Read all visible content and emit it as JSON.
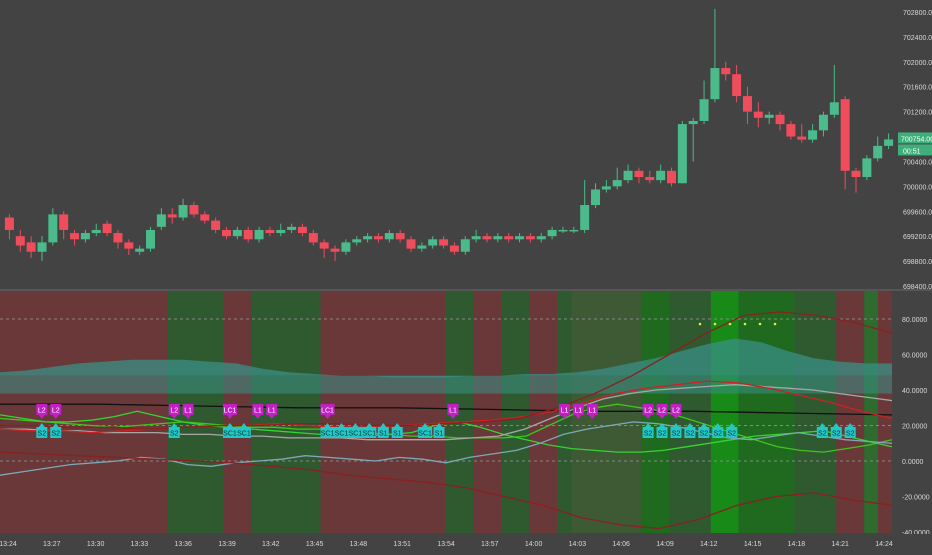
{
  "chart_data": [
    {
      "type": "candlestick",
      "title": "",
      "y_ticks": [
        "702800.00",
        "702400.00",
        "702000.00",
        "701600.00",
        "701200.00",
        "700800.00",
        "700400.00",
        "700000.00",
        "699600.00",
        "699200.00",
        "698800.00",
        "698400.00"
      ],
      "y_range": [
        698400,
        702900
      ],
      "last_price_label": "700754.00",
      "countdown_label": "00:51",
      "colors": {
        "up": "#4cbb8b",
        "down": "#ef4c5c",
        "price_tag": "#3fae7a",
        "background": "#434343"
      },
      "candles": [
        [
          699500,
          699300,
          699550,
          699150
        ],
        [
          699200,
          699050,
          699300,
          698950
        ],
        [
          699100,
          698950,
          699200,
          698850
        ],
        [
          698950,
          699100,
          699200,
          698800
        ],
        [
          699100,
          699550,
          699650,
          699050
        ],
        [
          699550,
          699300,
          699600,
          699150
        ],
        [
          699250,
          699150,
          699300,
          699050
        ],
        [
          699150,
          699250,
          699300,
          699100
        ],
        [
          699250,
          699300,
          699400,
          699200
        ],
        [
          699400,
          699250,
          699450,
          699200
        ],
        [
          699250,
          699100,
          699300,
          699000
        ],
        [
          699100,
          699000,
          699150,
          698900
        ],
        [
          698950,
          699000,
          699050,
          698900
        ],
        [
          699000,
          699300,
          699350,
          698950
        ],
        [
          699350,
          699550,
          699650,
          699300
        ],
        [
          699550,
          699500,
          699650,
          699400
        ],
        [
          699500,
          699700,
          699800,
          699450
        ],
        [
          699700,
          699550,
          699750,
          699500
        ],
        [
          699550,
          699450,
          699600,
          699400
        ],
        [
          699450,
          699300,
          699500,
          699250
        ],
        [
          699300,
          699200,
          699350,
          699150
        ],
        [
          699200,
          699300,
          699350,
          699150
        ],
        [
          699300,
          699150,
          699350,
          699100
        ],
        [
          699150,
          699300,
          699350,
          699100
        ],
        [
          699300,
          699250,
          699350,
          699200
        ],
        [
          699250,
          699300,
          699400,
          699200
        ],
        [
          699300,
          699350,
          699400,
          699250
        ],
        [
          699350,
          699250,
          699400,
          699200
        ],
        [
          699250,
          699100,
          699300,
          699050
        ],
        [
          699100,
          699000,
          699150,
          698850
        ],
        [
          699000,
          698950,
          699050,
          698800
        ],
        [
          698950,
          699100,
          699150,
          698900
        ],
        [
          699100,
          699150,
          699200,
          699050
        ],
        [
          699150,
          699200,
          699250,
          699100
        ],
        [
          699200,
          699150,
          699250,
          699100
        ],
        [
          699150,
          699250,
          699300,
          699100
        ],
        [
          699250,
          699150,
          699300,
          699100
        ],
        [
          699150,
          699000,
          699200,
          698950
        ],
        [
          699000,
          699050,
          699100,
          698950
        ],
        [
          699050,
          699150,
          699200,
          699000
        ],
        [
          699150,
          699050,
          699200,
          699000
        ],
        [
          699050,
          698950,
          699100,
          698900
        ],
        [
          698950,
          699150,
          699200,
          698900
        ],
        [
          699150,
          699200,
          699300,
          699100
        ],
        [
          699200,
          699150,
          699250,
          699100
        ],
        [
          699150,
          699200,
          699250,
          699100
        ],
        [
          699200,
          699150,
          699250,
          699100
        ],
        [
          699150,
          699200,
          699250,
          699100
        ],
        [
          699200,
          699150,
          699250,
          699100
        ],
        [
          699150,
          699200,
          699250,
          699100
        ],
        [
          699200,
          699300,
          699350,
          699150
        ],
        [
          699300,
          699300,
          699350,
          699250
        ],
        [
          699300,
          699300,
          699350,
          699250
        ],
        [
          699300,
          699700,
          700100,
          699250
        ],
        [
          699700,
          699950,
          700050,
          699650
        ],
        [
          699950,
          700000,
          700100,
          699900
        ],
        [
          700000,
          700100,
          700300,
          699950
        ],
        [
          700100,
          700250,
          700350,
          700050
        ],
        [
          700250,
          700150,
          700300,
          700050
        ],
        [
          700150,
          700100,
          700250,
          700050
        ],
        [
          700100,
          700250,
          700350,
          700050
        ],
        [
          700250,
          700050,
          700300,
          700000
        ],
        [
          700050,
          701000,
          701050,
          700050
        ],
        [
          701000,
          701050,
          701100,
          700400
        ],
        [
          701050,
          701400,
          701700,
          701000
        ],
        [
          701400,
          701900,
          702850,
          701350
        ],
        [
          701900,
          701800,
          702000,
          701700
        ],
        [
          701800,
          701450,
          701950,
          701350
        ],
        [
          701450,
          701200,
          701600,
          701000
        ],
        [
          701200,
          701100,
          701350,
          700950
        ],
        [
          701100,
          701150,
          701200,
          701000
        ],
        [
          701150,
          701000,
          701200,
          700900
        ],
        [
          701000,
          700800,
          701050,
          700750
        ],
        [
          700800,
          700750,
          701000,
          700700
        ],
        [
          700750,
          700900,
          701000,
          700700
        ],
        [
          700900,
          701150,
          701200,
          700800
        ],
        [
          701150,
          701350,
          701950,
          701100
        ],
        [
          701400,
          700250,
          701450,
          699950
        ],
        [
          700250,
          700150,
          700300,
          699900
        ],
        [
          700150,
          700450,
          700500,
          700100
        ],
        [
          700450,
          700650,
          700800,
          700400
        ],
        [
          700650,
          700754,
          700850,
          700600
        ]
      ],
      "x_ticks": [
        "13:24",
        "13:27",
        "13:30",
        "13:33",
        "13:36",
        "13:39",
        "13:42",
        "13:45",
        "13:48",
        "13:51",
        "13:54",
        "13:57",
        "14:00",
        "14:03",
        "14:06",
        "14:09",
        "14:12",
        "14:15",
        "14:18",
        "14:21",
        "14:24"
      ]
    },
    {
      "type": "line",
      "title": "",
      "y_ticks": [
        "80.0000",
        "60.0000",
        "40.0000",
        "20.0000",
        "0.0000",
        "-20.0000",
        "-40.0000"
      ],
      "y_range": [
        -45,
        93
      ],
      "dashed_levels": [
        80,
        20,
        0
      ],
      "background_regions": [
        {
          "from": 0,
          "to": 12,
          "color": "#6a3838"
        },
        {
          "from": 12,
          "to": 16,
          "color": "#2f5a30"
        },
        {
          "from": 16,
          "to": 18,
          "color": "#6a3838"
        },
        {
          "from": 18,
          "to": 23,
          "color": "#2f5a30"
        },
        {
          "from": 23,
          "to": 32,
          "color": "#6a3838"
        },
        {
          "from": 32,
          "to": 34,
          "color": "#2f5a30"
        },
        {
          "from": 34,
          "to": 36,
          "color": "#6a3838"
        },
        {
          "from": 36,
          "to": 38,
          "color": "#2f5a30"
        },
        {
          "from": 38,
          "to": 40,
          "color": "#6a3838"
        },
        {
          "from": 40,
          "to": 41,
          "color": "#2f5a30"
        },
        {
          "from": 41,
          "to": 46,
          "color": "#3e5a35"
        },
        {
          "from": 46,
          "to": 48,
          "color": "#1f6a1f"
        },
        {
          "from": 48,
          "to": 51,
          "color": "#2f5a30"
        },
        {
          "from": 51,
          "to": 53,
          "color": "#178a17"
        },
        {
          "from": 53,
          "to": 57,
          "color": "#1f6a1f"
        },
        {
          "from": 57,
          "to": 60,
          "color": "#2f5a30"
        },
        {
          "from": 60,
          "to": 62,
          "color": "#6a3838"
        },
        {
          "from": 62,
          "to": 63,
          "color": "#2f6a2f"
        },
        {
          "from": 63,
          "to": 64,
          "color": "#6a3838"
        }
      ],
      "series": [
        {
          "color": "#3a8f86",
          "fill": true,
          "values": [
            50,
            51,
            53,
            55,
            56,
            57,
            57,
            57,
            56,
            55,
            52,
            50,
            49,
            48,
            48,
            47,
            47,
            47,
            48,
            48,
            49,
            49,
            50,
            52,
            55,
            58,
            62,
            66,
            69,
            67,
            62,
            58,
            56,
            55,
            55
          ]
        },
        {
          "color": "#111111",
          "values": [
            32,
            32,
            31,
            30,
            30,
            29,
            28,
            28,
            27,
            26
          ]
        },
        {
          "color": "#41c41b",
          "values": [
            24,
            23,
            22,
            21,
            20,
            19,
            20,
            21,
            22,
            21,
            20,
            19,
            19,
            18,
            18,
            17,
            16,
            15,
            14,
            14,
            13,
            13,
            13,
            14,
            20,
            26,
            30,
            32,
            30,
            28,
            24,
            20,
            16,
            12,
            8,
            6,
            5,
            7,
            9,
            12
          ]
        },
        {
          "color": "#33d433",
          "values": [
            26,
            24,
            22,
            22,
            23,
            25,
            28,
            25,
            22,
            20,
            19,
            18,
            17,
            16,
            15,
            14,
            14,
            15,
            16,
            20,
            22,
            19,
            15,
            12,
            9,
            7,
            6,
            5,
            5,
            6,
            8,
            10,
            12,
            14,
            15,
            16,
            17,
            14,
            11,
            8
          ]
        },
        {
          "color": "#a7a7a7",
          "values": [
            18,
            18,
            17,
            17,
            16,
            16,
            16,
            15,
            15,
            14,
            14,
            13,
            13,
            13,
            12,
            12,
            12,
            12,
            13,
            14,
            18,
            24,
            30,
            35,
            38,
            40,
            41,
            42,
            43,
            42,
            41,
            40,
            38,
            36,
            34
          ]
        },
        {
          "color": "#7fa7b7",
          "values": [
            -8,
            -6,
            -4,
            -2,
            -1,
            0,
            2,
            1,
            -2,
            -3,
            -1,
            0,
            1,
            3,
            2,
            1,
            0,
            2,
            1,
            -1,
            2,
            4,
            6,
            10,
            15,
            18,
            20,
            22,
            21,
            19,
            16,
            13,
            12,
            14,
            16,
            14,
            12,
            11,
            10
          ]
        },
        {
          "color": "#cc2222",
          "values": [
            18,
            17,
            17,
            16,
            17,
            18,
            19,
            20,
            20,
            21,
            20,
            19,
            19,
            20,
            21,
            22,
            23,
            25,
            28,
            33,
            38,
            41,
            43,
            45,
            44,
            41,
            37,
            33,
            28,
            24
          ]
        },
        {
          "color": "#8a2020",
          "values": [
            20,
            20,
            19,
            19,
            18,
            19,
            20,
            20,
            21,
            21,
            20,
            20,
            21,
            22,
            24,
            30,
            38,
            48,
            60,
            72,
            82,
            84,
            82,
            78,
            72
          ]
        },
        {
          "color": "#8a2020",
          "values": [
            5,
            4,
            3,
            2,
            1,
            0,
            -1,
            -3,
            -5,
            -8,
            -10,
            -12,
            -15,
            -20,
            -25,
            -32,
            -36,
            -38,
            -33,
            -25,
            -20,
            -18,
            -22,
            -25
          ]
        }
      ],
      "markers": [
        {
          "x": 3,
          "label": "L2",
          "kind": "L"
        },
        {
          "x": 4,
          "label": "L2",
          "kind": "L"
        },
        {
          "x": 12.5,
          "label": "L2",
          "kind": "L"
        },
        {
          "x": 13.5,
          "label": "L1",
          "kind": "L"
        },
        {
          "x": 16.5,
          "label": "LC1",
          "kind": "L"
        },
        {
          "x": 18.5,
          "label": "L1",
          "kind": "L"
        },
        {
          "x": 19.5,
          "label": "L1",
          "kind": "L"
        },
        {
          "x": 23.5,
          "label": "LC1",
          "kind": "L"
        },
        {
          "x": 32.5,
          "label": "L1",
          "kind": "L"
        },
        {
          "x": 40.5,
          "label": "L1",
          "kind": "L"
        },
        {
          "x": 41.5,
          "label": "L1",
          "kind": "L"
        },
        {
          "x": 42.5,
          "label": "L1",
          "kind": "L"
        },
        {
          "x": 46.5,
          "label": "L2",
          "kind": "L"
        },
        {
          "x": 47.5,
          "label": "L2",
          "kind": "L"
        },
        {
          "x": 48.5,
          "label": "L2",
          "kind": "L"
        },
        {
          "x": 3,
          "label": "S2",
          "kind": "S"
        },
        {
          "x": 4,
          "label": "S2",
          "kind": "S"
        },
        {
          "x": 12.5,
          "label": "S2",
          "kind": "S"
        },
        {
          "x": 16.5,
          "label": "SC1",
          "kind": "S"
        },
        {
          "x": 17.5,
          "label": "SC1",
          "kind": "S"
        },
        {
          "x": 23.5,
          "label": "SC1",
          "kind": "S"
        },
        {
          "x": 24.5,
          "label": "SC1",
          "kind": "S"
        },
        {
          "x": 25.5,
          "label": "SC1",
          "kind": "S"
        },
        {
          "x": 26.5,
          "label": "SC1",
          "kind": "S"
        },
        {
          "x": 27.5,
          "label": "S1",
          "kind": "S"
        },
        {
          "x": 28.5,
          "label": "S1",
          "kind": "S"
        },
        {
          "x": 30.5,
          "label": "SC1",
          "kind": "S"
        },
        {
          "x": 31.5,
          "label": "S1",
          "kind": "S"
        },
        {
          "x": 46.5,
          "label": "S2",
          "kind": "S"
        },
        {
          "x": 47.5,
          "label": "S2",
          "kind": "S"
        },
        {
          "x": 48.5,
          "label": "S2",
          "kind": "S"
        },
        {
          "x": 49.5,
          "label": "S2",
          "kind": "S"
        },
        {
          "x": 50.5,
          "label": "S2",
          "kind": "S"
        },
        {
          "x": 51.5,
          "label": "S2",
          "kind": "S"
        },
        {
          "x": 52.5,
          "label": "S2",
          "kind": "S"
        },
        {
          "x": 59,
          "label": "S2",
          "kind": "S"
        },
        {
          "x": 60,
          "label": "S2",
          "kind": "S"
        },
        {
          "x": 61,
          "label": "S2",
          "kind": "S"
        }
      ],
      "colors": {
        "L": "#c41fc4",
        "S": "#25c6c6",
        "dashed": "#9a9a9a"
      }
    }
  ]
}
